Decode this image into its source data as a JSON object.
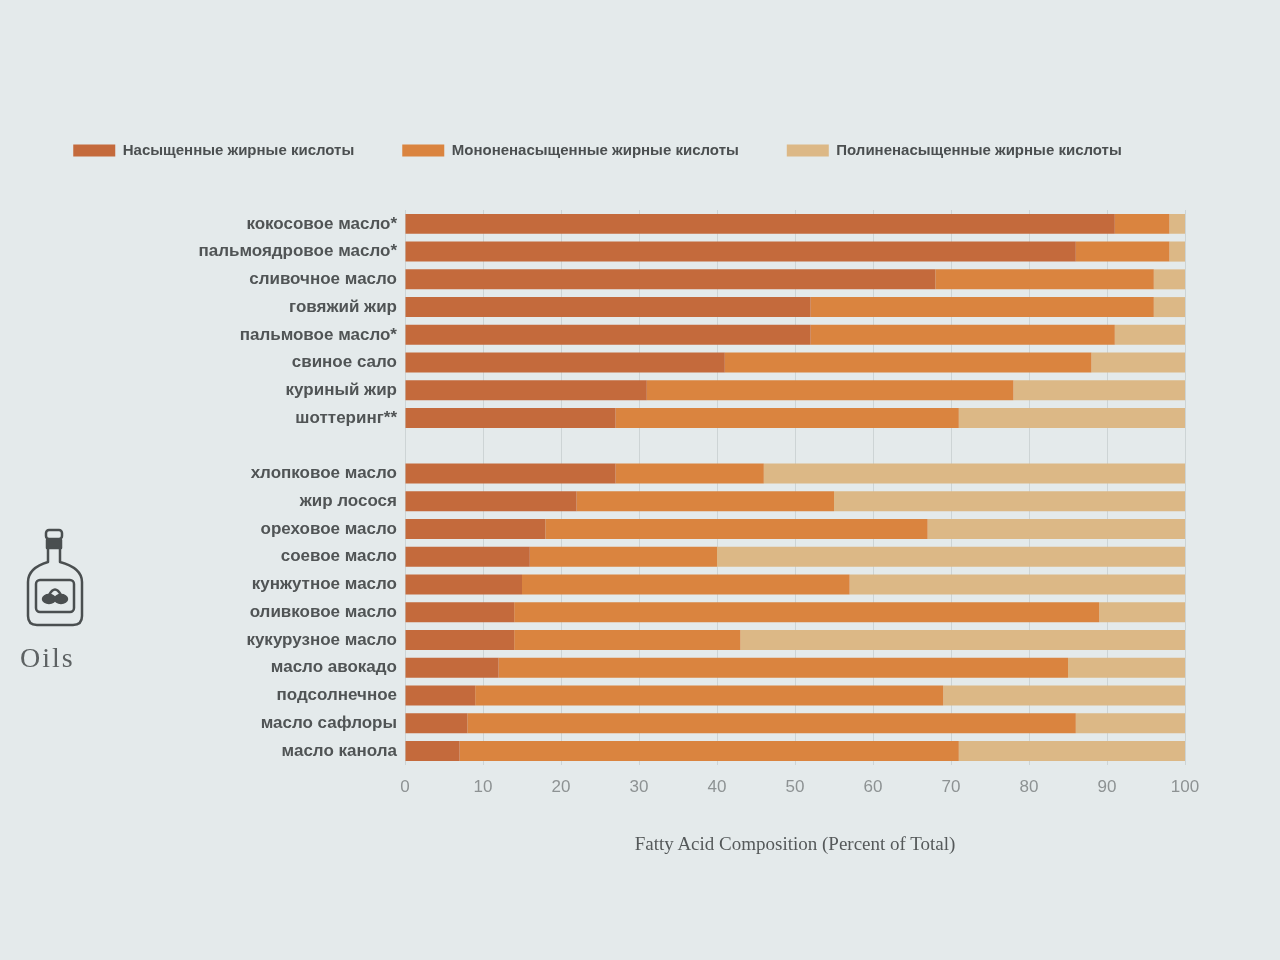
{
  "chart_data": {
    "type": "bar",
    "orientation": "horizontal",
    "stacked": true,
    "categories": [
      "кокосовое масло*",
      "пальмоядровое масло*",
      "сливочное масло",
      "говяжий жир",
      "пальмовое масло*",
      "свиное сало",
      "куриный жир",
      "шоттеринг**",
      null,
      "хлопковое масло",
      "жир лосося",
      "ореховое масло",
      "соевое масло",
      "кунжутное масло",
      "оливковое масло",
      "кукурузное масло",
      "масло авокадо",
      "подсолнечное",
      "масло сафлоры",
      "масло канола"
    ],
    "series": [
      {
        "name": "Насыщенные жирные кислоты",
        "color": "#c46a3c",
        "values": [
          91,
          86,
          68,
          52,
          52,
          41,
          31,
          27,
          null,
          27,
          22,
          18,
          16,
          15,
          14,
          14,
          12,
          9,
          8,
          7
        ]
      },
      {
        "name": "Мононенасыщенные жирные кислоты",
        "color": "#da843f",
        "values": [
          7,
          12,
          28,
          44,
          39,
          47,
          47,
          44,
          null,
          19,
          33,
          49,
          24,
          42,
          75,
          29,
          73,
          60,
          78,
          64
        ]
      },
      {
        "name": "Полиненасыщенные жирные кислоты",
        "color": "#dcb886",
        "values": [
          2,
          2,
          4,
          4,
          9,
          12,
          22,
          29,
          null,
          54,
          45,
          33,
          60,
          43,
          11,
          57,
          15,
          31,
          14,
          29
        ]
      }
    ],
    "xlim": [
      0,
      100
    ],
    "xticks": [
      0,
      10,
      20,
      30,
      40,
      50,
      60,
      70,
      80,
      90,
      100
    ],
    "xlabel": "Fatty Acid Composition (Percent of Total)",
    "grid": "x",
    "legend": "top",
    "annotations": [
      "Oils"
    ]
  }
}
